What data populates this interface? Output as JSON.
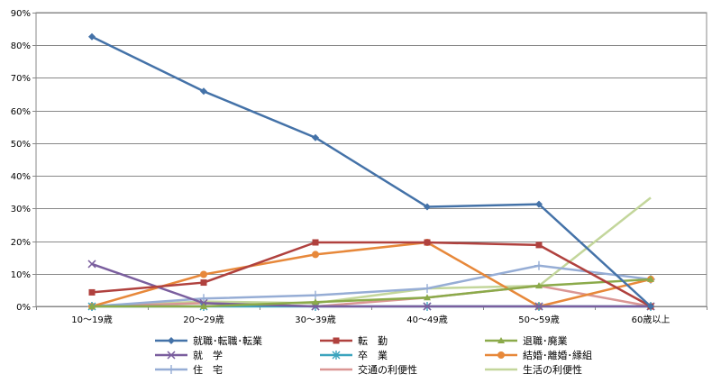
{
  "chart_data": {
    "type": "line",
    "categories": [
      "10～19歳",
      "20～29歳",
      "30～39歳",
      "40～49歳",
      "50～59歳",
      "60歳以上"
    ],
    "ylim": [
      0,
      90
    ],
    "yticks": [
      0,
      10,
      20,
      30,
      40,
      50,
      60,
      70,
      80,
      90
    ],
    "ytick_labels": [
      "0%",
      "10%",
      "20%",
      "30%",
      "40%",
      "50%",
      "60%",
      "70%",
      "80%",
      "90%"
    ],
    "grid": true,
    "legend_position": "bottom",
    "series": [
      {
        "name": "就職･転職･転業",
        "color": "#4472A8",
        "marker": "diamond",
        "values": [
          82.6,
          65.9,
          51.7,
          30.5,
          31.3,
          0.0
        ]
      },
      {
        "name": "転　勤",
        "color": "#B0413E",
        "marker": "square",
        "values": [
          4.3,
          7.3,
          19.6,
          19.6,
          18.8,
          0.0
        ]
      },
      {
        "name": "退職･廃業",
        "color": "#8BAA4A",
        "marker": "triangle",
        "values": [
          0.0,
          0.0,
          1.3,
          2.7,
          6.3,
          8.3
        ]
      },
      {
        "name": "就　学",
        "color": "#7A5E9E",
        "marker": "x",
        "values": [
          13.0,
          1.0,
          0.0,
          0.0,
          0.0,
          0.0
        ]
      },
      {
        "name": "卒　業",
        "color": "#3CA4BE",
        "marker": "star",
        "values": [
          0.0,
          0.0,
          0.0,
          0.0,
          0.0,
          0.0
        ]
      },
      {
        "name": "結婚･離婚･縁組",
        "color": "#E7883A",
        "marker": "circle",
        "values": [
          0.0,
          9.8,
          15.9,
          19.6,
          0.0,
          8.3
        ]
      },
      {
        "name": "住　宅",
        "color": "#96ADD5",
        "marker": "plus",
        "values": [
          0.0,
          2.4,
          3.4,
          5.5,
          12.5,
          8.3
        ]
      },
      {
        "name": "交通の利便性",
        "color": "#DA9694",
        "marker": "none",
        "values": [
          0.0,
          1.0,
          0.0,
          2.7,
          6.3,
          0.0
        ]
      },
      {
        "name": "生活の利便性",
        "color": "#C3D69B",
        "marker": "none",
        "values": [
          0.0,
          1.5,
          1.0,
          5.5,
          6.3,
          33.3
        ]
      }
    ]
  }
}
